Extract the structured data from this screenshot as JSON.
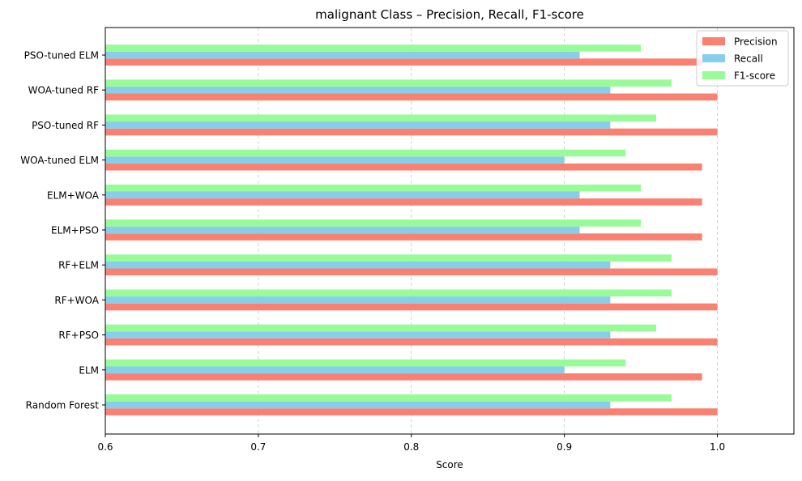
{
  "chart_data": {
    "type": "bar",
    "orientation": "horizontal",
    "title": "malignant Class – Precision, Recall, F1-score",
    "xlabel": "Score",
    "ylabel": "",
    "xlim": [
      0.6,
      1.05
    ],
    "xticks": [
      "0.6",
      "0.7",
      "0.8",
      "0.9",
      "1.0"
    ],
    "grid": "x-axis dashed",
    "legend_position": "top-right",
    "categories": [
      "Random Forest",
      "ELM",
      "RF+PSO",
      "RF+WOA",
      "RF+ELM",
      "ELM+PSO",
      "ELM+WOA",
      "WOA-tuned ELM",
      "PSO-tuned RF",
      "WOA-tuned RF",
      "PSO-tuned ELM"
    ],
    "series": [
      {
        "name": "Precision",
        "color": "#fa8072",
        "values": [
          1.0,
          0.99,
          1.0,
          1.0,
          1.0,
          0.99,
          0.99,
          0.99,
          1.0,
          1.0,
          0.99
        ]
      },
      {
        "name": "Recall",
        "color": "#87ceeb",
        "values": [
          0.93,
          0.9,
          0.93,
          0.93,
          0.93,
          0.91,
          0.91,
          0.9,
          0.93,
          0.93,
          0.91
        ]
      },
      {
        "name": "F1-score",
        "color": "#98fb98",
        "values": [
          0.97,
          0.94,
          0.96,
          0.97,
          0.97,
          0.95,
          0.95,
          0.94,
          0.96,
          0.97,
          0.95
        ]
      }
    ]
  }
}
